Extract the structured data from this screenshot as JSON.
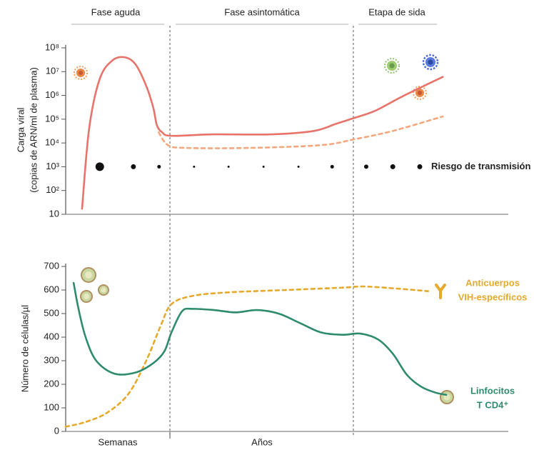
{
  "phases": [
    "Fase aguda",
    "Fase asintomática",
    "Etapa de sida"
  ],
  "time_labels": [
    "Semanas",
    "Años"
  ],
  "chart_data": [
    {
      "type": "line",
      "y_label": [
        "Carga viral",
        "(copias de ARN/ml de plasma)"
      ],
      "log_scale": true,
      "xlim": [
        0,
        100
      ],
      "ylim": [
        10,
        100000000
      ],
      "yticks": [
        10,
        {
          "value": 100,
          "label": "10²"
        },
        {
          "value": 1000,
          "label": "10³"
        },
        {
          "value": 10000,
          "label": "10⁴"
        },
        {
          "value": 100000,
          "label": "10⁵"
        },
        {
          "value": 1000000,
          "label": "10⁶"
        },
        {
          "value": 10000000,
          "label": "10⁷"
        },
        {
          "value": 100000000,
          "label": "10⁸"
        }
      ],
      "series": [
        {
          "color": "#e8736b",
          "dashed": false,
          "x": [
            3.7,
            5.3,
            7.7,
            10.6,
            13.4,
            15.8,
            18.2,
            19.8,
            20.6,
            21.8,
            23.9,
            33.5,
            46.5,
            56.1,
            61,
            65,
            69.8,
            75.5,
            80.3,
            85.2
          ],
          "values": [
            17,
            40000,
            5000000,
            30000000,
            40000000,
            20000000,
            2500000,
            300000,
            56000,
            28000,
            20000,
            23000,
            23000,
            32000,
            63000,
            110000,
            220000,
            800000,
            2200000,
            6000000
          ]
        },
        {
          "color": "#f4a77c",
          "dashed": true,
          "x": [
            21,
            23.1,
            27.1,
            41.6,
            57.7,
            65,
            73.9,
            85.2
          ],
          "values": [
            28000,
            8100,
            6200,
            6200,
            8100,
            14000,
            32000,
            130000
          ]
        }
      ],
      "transmission_risk": {
        "name": "Riesgo de transmisión",
        "color": "#111111",
        "x": [
          7.7,
          15.3,
          21.1,
          29,
          36.8,
          44.7,
          52.6,
          60.2,
          67.9,
          73.9,
          80
        ],
        "values": [
          6,
          3.5,
          2.5,
          1.5,
          1.5,
          1.5,
          1.5,
          2.5,
          3,
          3.5,
          3.5
        ]
      }
    },
    {
      "type": "line",
      "y_label": [
        "Número de células/µl"
      ],
      "log_scale": false,
      "xlim": [
        0,
        100
      ],
      "ylim": [
        0,
        700
      ],
      "yticks": [
        0,
        100,
        200,
        300,
        400,
        500,
        600,
        700
      ],
      "series": [
        {
          "name": [
            "Anticuerpos",
            "VIH-específicos"
          ],
          "color": "#e5a92c",
          "dashed": true,
          "x": [
            0,
            4.5,
            9.4,
            14.2,
            18.2,
            21.5,
            23.9,
            28.7,
            36.8,
            49.7,
            62.6,
            67.4,
            75.5,
            81.9
          ],
          "values": [
            20,
            40,
            80,
            160,
            300,
            450,
            540,
            575,
            590,
            600,
            610,
            615,
            605,
            595
          ]
        },
        {
          "name": [
            "Linfocitos",
            "T CD4⁺"
          ],
          "color": "#2e8b6e",
          "dashed": false,
          "x": [
            1.8,
            2.9,
            4.5,
            6.9,
            11,
            15.8,
            19.8,
            22.3,
            23.9,
            26.3,
            28.7,
            33.5,
            38.4,
            43.2,
            48.1,
            52.9,
            57.7,
            62.6,
            66.6,
            70.6,
            73.9,
            77.1,
            80.3,
            83.5,
            86
          ],
          "values": [
            630,
            520,
            400,
            300,
            245,
            250,
            290,
            340,
            420,
            510,
            520,
            515,
            505,
            515,
            500,
            460,
            420,
            410,
            415,
            390,
            330,
            240,
            190,
            165,
            155
          ]
        }
      ]
    }
  ]
}
